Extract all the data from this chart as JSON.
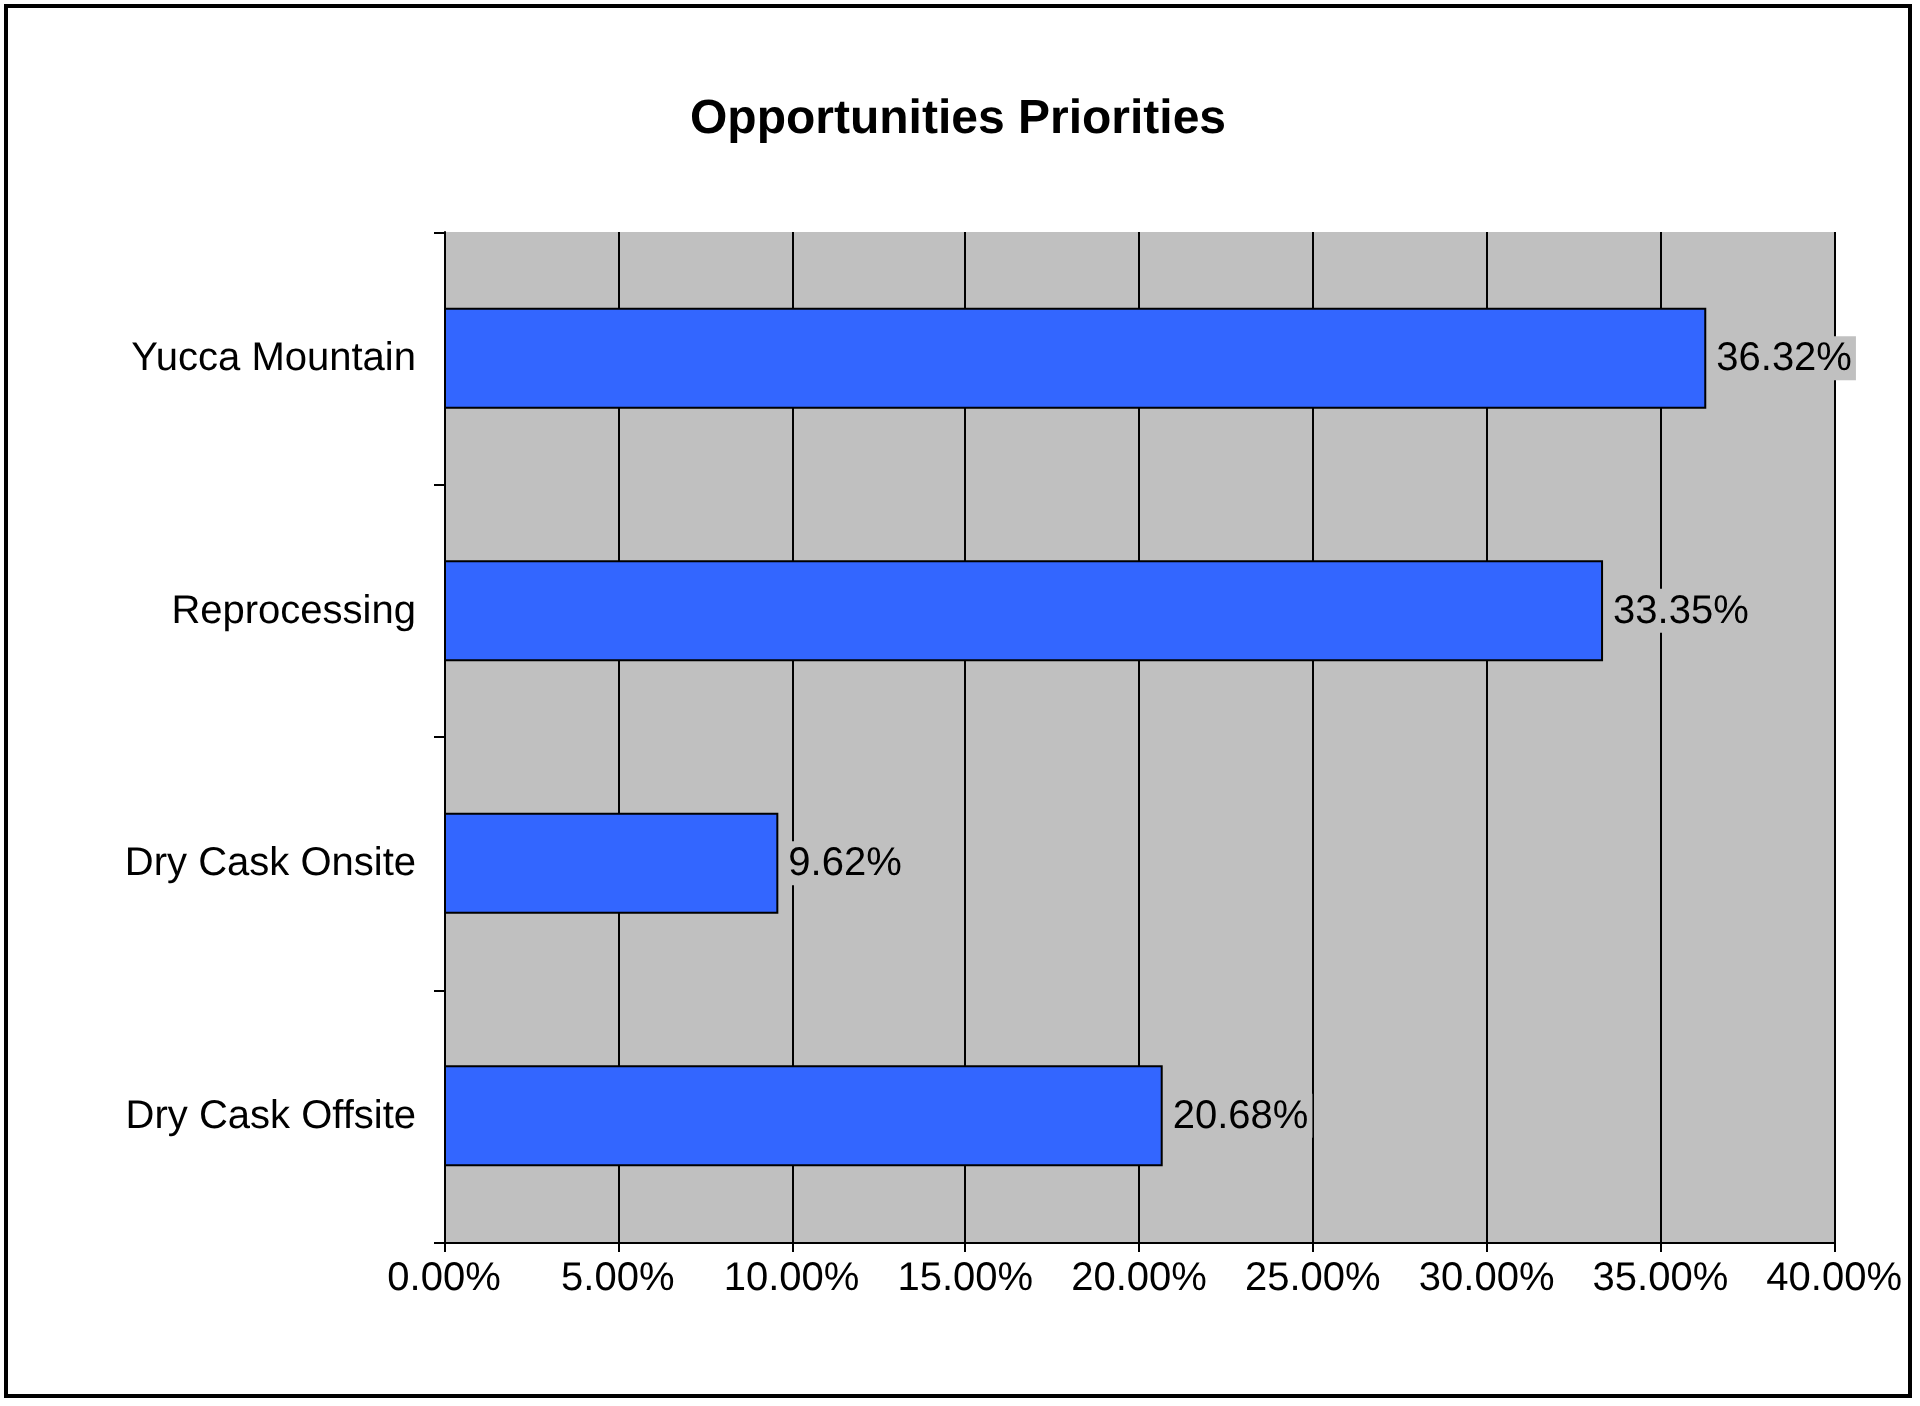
{
  "chart_data": {
    "type": "bar",
    "orientation": "horizontal",
    "title": "Opportunities Priorities",
    "categories": [
      "Yucca Mountain",
      "Reprocessing",
      "Dry Cask Onsite",
      "Dry Cask Offsite"
    ],
    "values": [
      36.32,
      33.35,
      9.62,
      20.68
    ],
    "value_labels": [
      "36.32%",
      "33.35%",
      "9.62%",
      "20.68%"
    ],
    "color": "#3366ff",
    "xlim": [
      0,
      40
    ],
    "xticks": [
      {
        "value": 0,
        "label": "0.00%"
      },
      {
        "value": 5,
        "label": "5.00%"
      },
      {
        "value": 10,
        "label": "10.00%"
      },
      {
        "value": 15,
        "label": "15.00%"
      },
      {
        "value": 20,
        "label": "20.00%"
      },
      {
        "value": 25,
        "label": "25.00%"
      },
      {
        "value": 30,
        "label": "30.00%"
      },
      {
        "value": 35,
        "label": "35.00%"
      },
      {
        "value": 40,
        "label": "40.00%"
      }
    ],
    "grid": "x"
  }
}
